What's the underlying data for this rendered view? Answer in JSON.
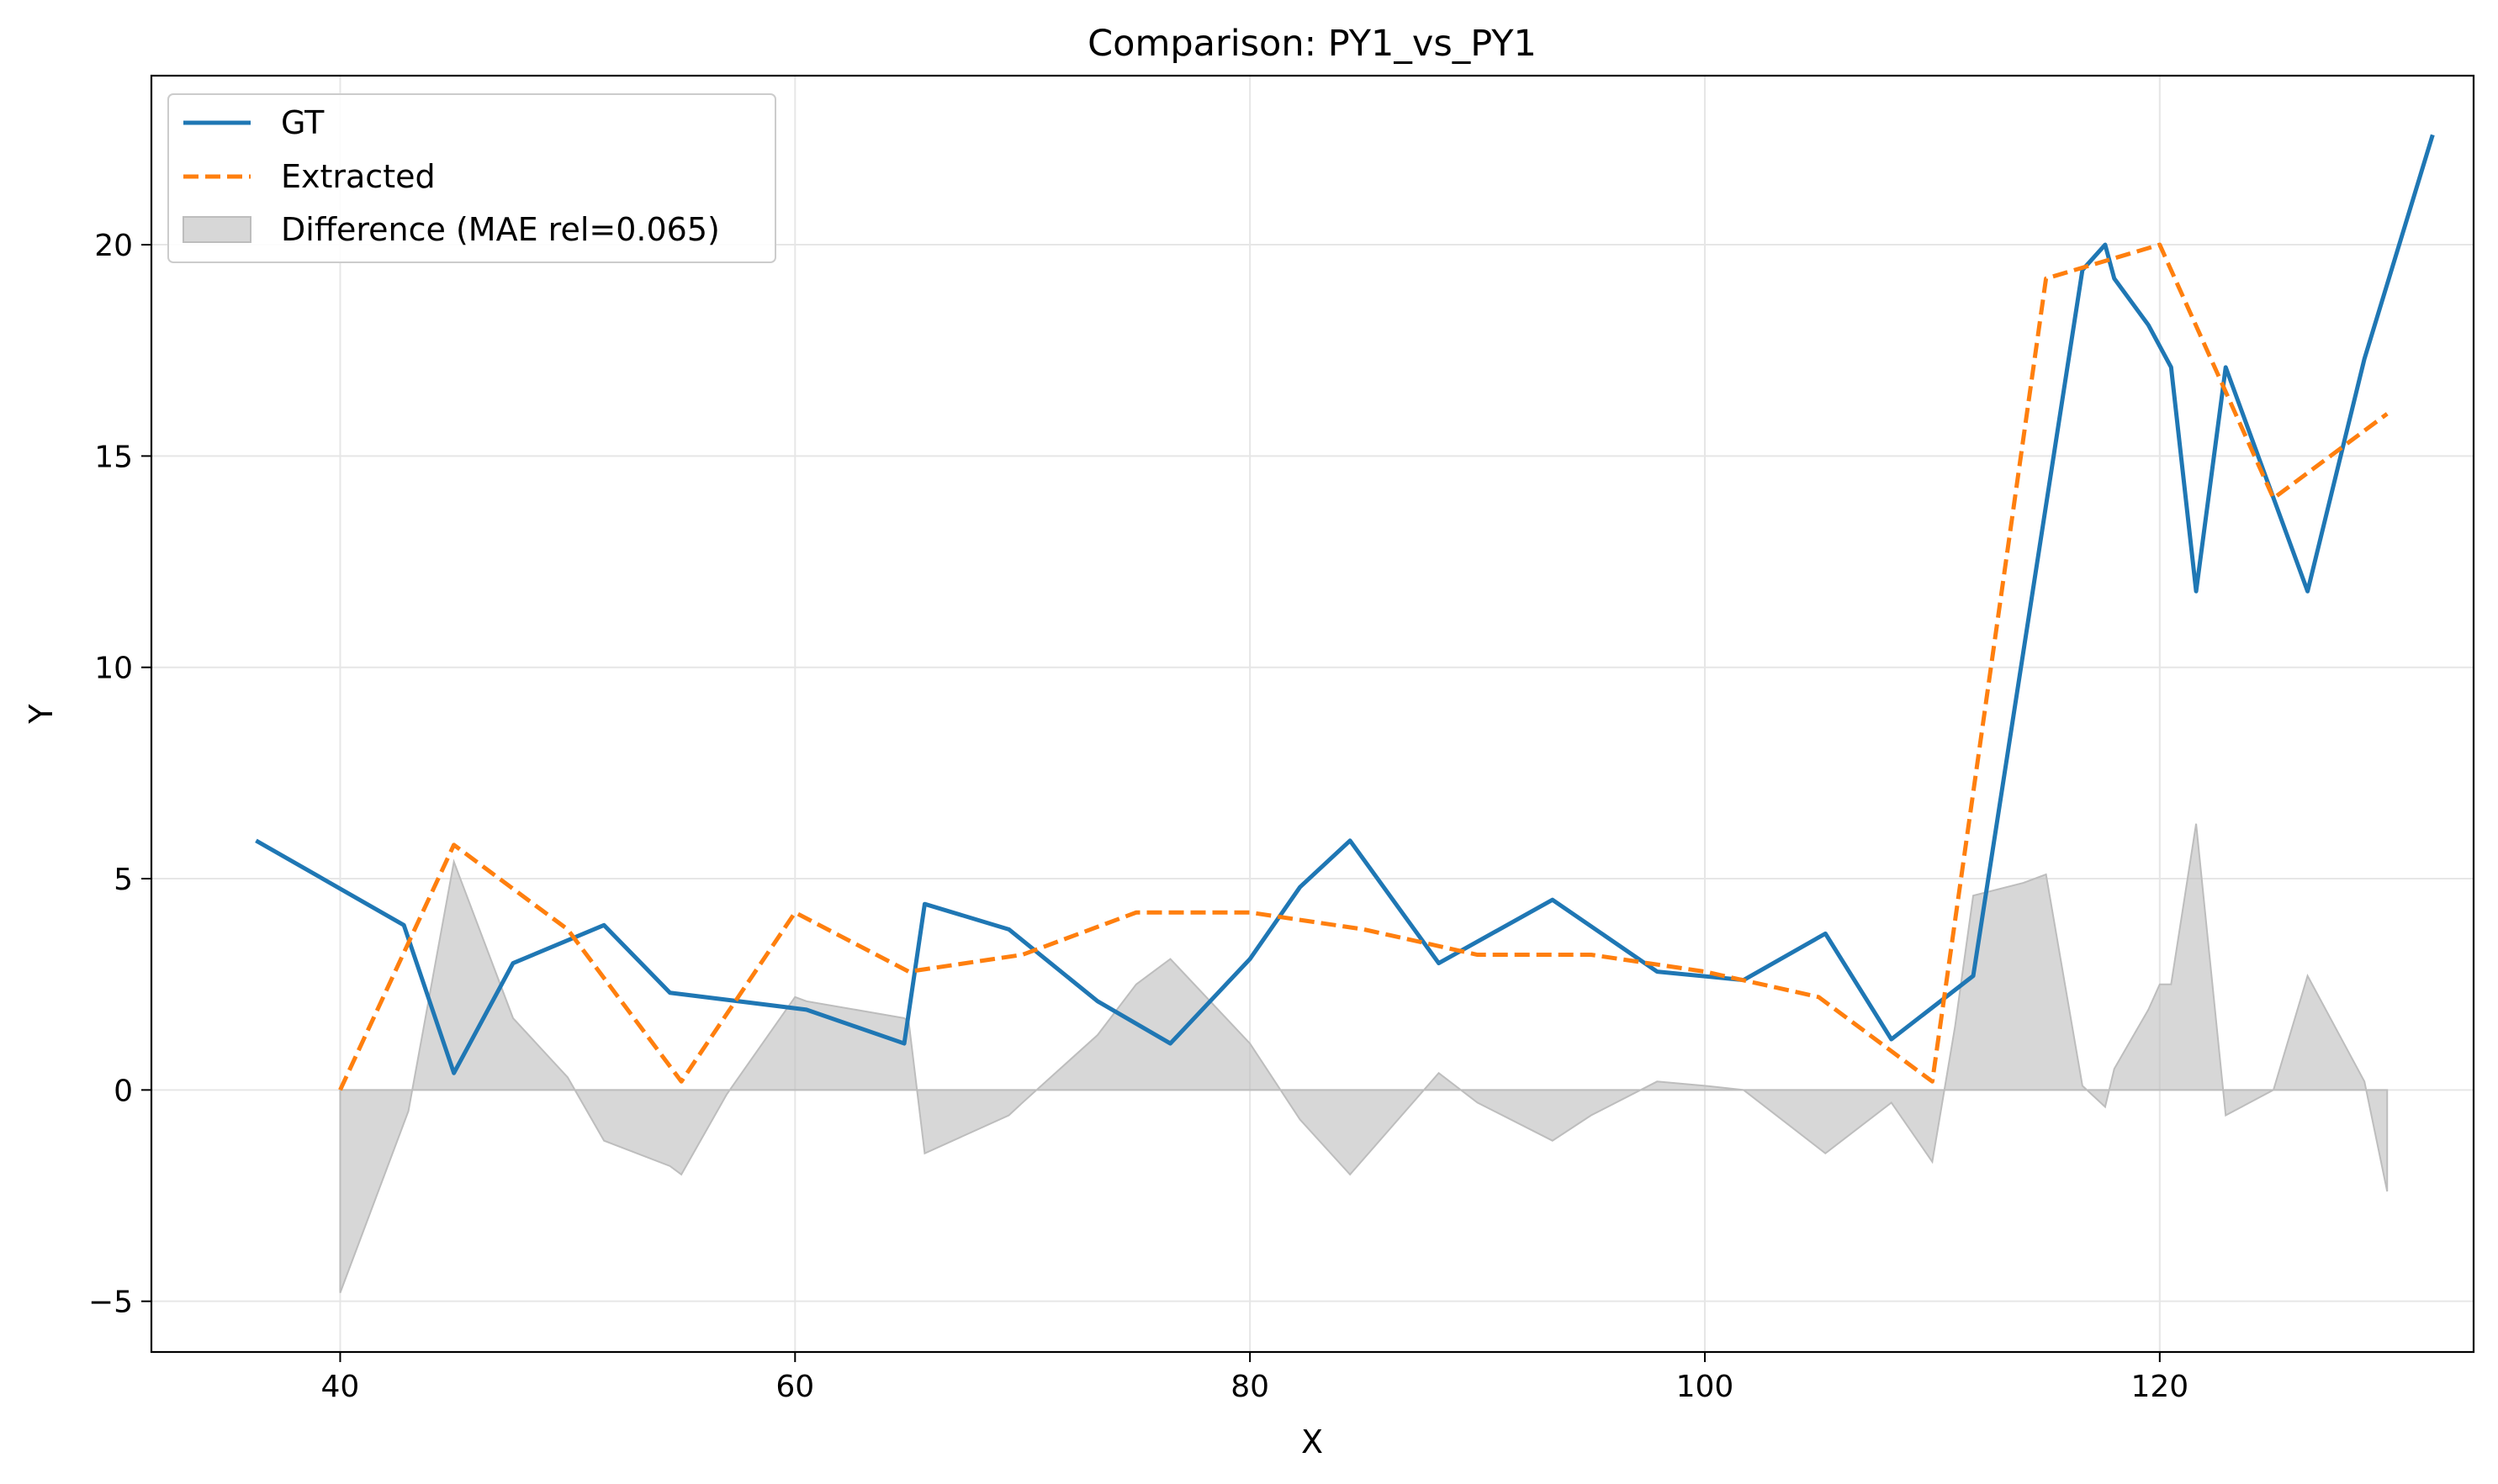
{
  "chart_data": {
    "type": "line",
    "title": "Comparison: PY1_vs_PY1",
    "xlabel": "X",
    "ylabel": "Y",
    "xlim": [
      31.7,
      133.8
    ],
    "ylim": [
      -6.2,
      24.0
    ],
    "xticks": [
      40,
      60,
      80,
      100,
      120
    ],
    "yticks": [
      -5,
      0,
      5,
      10,
      15,
      20
    ],
    "xtick_labels": [
      "40",
      "60",
      "80",
      "100",
      "120"
    ],
    "ytick_labels": [
      "−5",
      "0",
      "5",
      "10",
      "15",
      "20"
    ],
    "grid": true,
    "legend_position": "upper-left",
    "colors": {
      "gt": "#1f77b4",
      "extracted": "#ff7f0e",
      "difference": "#bdbdbd"
    },
    "series": [
      {
        "name": "GT",
        "style": "solid",
        "x": [
          36.3,
          42.8,
          45.0,
          47.6,
          51.6,
          54.5,
          60.5,
          64.8,
          65.7,
          69.4,
          73.3,
          76.5,
          80.0,
          82.2,
          84.4,
          88.3,
          93.3,
          97.9,
          101.7,
          105.3,
          108.2,
          111.8,
          116.6,
          117.6,
          118.0,
          119.5,
          120.5,
          121.6,
          122.9,
          126.5,
          129.0,
          132.0
        ],
        "y": [
          5.9,
          3.9,
          0.4,
          3.0,
          3.9,
          2.3,
          1.9,
          1.1,
          4.4,
          3.8,
          2.1,
          1.1,
          3.1,
          4.8,
          5.9,
          3.0,
          4.5,
          2.8,
          2.6,
          3.7,
          1.2,
          2.7,
          19.4,
          20.0,
          19.2,
          18.1,
          17.1,
          11.8,
          17.1,
          11.8,
          17.3,
          22.6
        ]
      },
      {
        "name": "Extracted",
        "style": "dashed",
        "x": [
          40.0,
          45.0,
          50.0,
          55.0,
          60.0,
          65.0,
          70.0,
          75.0,
          80.0,
          85.0,
          90.0,
          95.0,
          100.0,
          105.0,
          110.0,
          115.0,
          120.0,
          125.0,
          130.0
        ],
        "y": [
          0.0,
          5.8,
          3.8,
          0.2,
          4.2,
          2.8,
          3.2,
          4.2,
          4.2,
          3.8,
          3.2,
          3.2,
          2.8,
          2.2,
          0.2,
          19.2,
          20.0,
          14.0,
          16.0
        ]
      },
      {
        "name": "Difference (MAE rel=0.065)",
        "style": "fill",
        "x": [
          40.0,
          43.0,
          45.0,
          47.6,
          50.0,
          51.6,
          54.5,
          55.0,
          57.0,
          60.0,
          60.5,
          64.8,
          65.0,
          65.7,
          69.4,
          70.0,
          73.3,
          75.0,
          76.5,
          80.0,
          82.2,
          84.4,
          88.3,
          90.0,
          93.3,
          95.0,
          97.9,
          100.0,
          101.7,
          105.3,
          108.2,
          110.0,
          111.0,
          111.8,
          114.0,
          115.0,
          116.6,
          117.6,
          118.0,
          119.5,
          120.0,
          120.5,
          121.6,
          122.9,
          125.0,
          126.5,
          129.0,
          130.0
        ],
        "y": [
          -4.8,
          -0.5,
          5.4,
          1.7,
          0.3,
          -1.2,
          -1.8,
          -2.0,
          -0.1,
          2.2,
          2.1,
          1.7,
          1.6,
          -1.5,
          -0.6,
          -0.3,
          1.3,
          2.5,
          3.1,
          1.1,
          -0.7,
          -2.0,
          0.4,
          -0.3,
          -1.2,
          -0.6,
          0.2,
          0.1,
          0.0,
          -1.5,
          -0.3,
          -1.7,
          1.5,
          4.6,
          4.9,
          5.1,
          0.1,
          -0.4,
          0.5,
          1.9,
          2.5,
          2.5,
          6.3,
          -0.6,
          0.0,
          2.7,
          0.2,
          -2.4
        ]
      }
    ]
  }
}
